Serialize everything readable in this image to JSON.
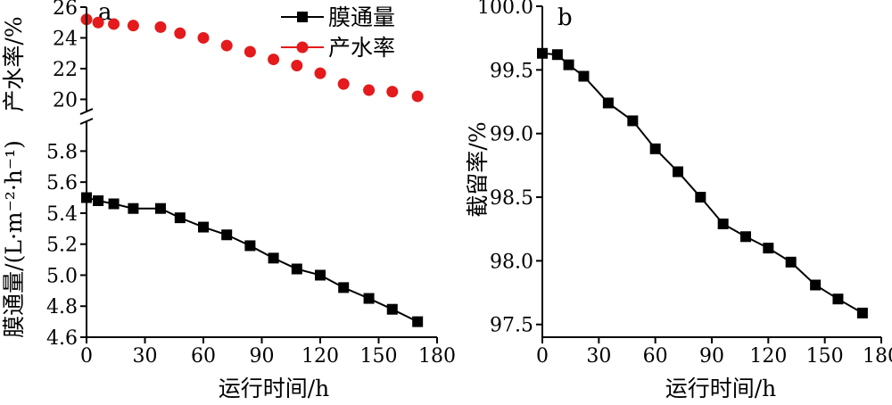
{
  "chart_data": [
    {
      "panel": "a",
      "type": "line",
      "xlabel": "运行时间/h",
      "ylabel_top": "产水率/%",
      "ylabel_bottom": "膜通量/(L·m⁻²·h⁻¹)",
      "xlim": [
        0,
        180
      ],
      "xticks": [
        "0",
        "30",
        "60",
        "90",
        "120",
        "150",
        "180"
      ],
      "ylim_top": [
        19.5,
        26
      ],
      "yticks_top": [
        "20",
        "22",
        "24",
        "26"
      ],
      "ylim_bottom": [
        4.6,
        5.9
      ],
      "yticks_bottom": [
        "4.6",
        "4.8",
        "5.0",
        "5.2",
        "5.4",
        "5.6",
        "5.8"
      ],
      "legend": [
        "膜通量",
        "产水率"
      ],
      "series": [
        {
          "name": "膜通量",
          "color": "#000000",
          "marker": "square",
          "line": true,
          "axis": "bottom",
          "x": [
            0,
            6,
            14,
            24,
            38,
            48,
            60,
            72,
            84,
            96,
            108,
            120,
            132,
            145,
            157,
            170
          ],
          "values": [
            5.5,
            5.48,
            5.46,
            5.43,
            5.43,
            5.37,
            5.31,
            5.26,
            5.19,
            5.11,
            5.04,
            5.0,
            4.92,
            4.85,
            4.78,
            4.7
          ]
        },
        {
          "name": "产水率",
          "color": "#e41a1c",
          "marker": "circle",
          "line": false,
          "axis": "top",
          "x": [
            0,
            6,
            14,
            24,
            38,
            48,
            60,
            72,
            84,
            96,
            108,
            120,
            132,
            145,
            157,
            170
          ],
          "values": [
            25.2,
            25.0,
            24.9,
            24.8,
            24.7,
            24.3,
            24.0,
            23.5,
            23.1,
            22.6,
            22.2,
            21.7,
            21.0,
            20.6,
            20.5,
            20.2
          ]
        }
      ]
    },
    {
      "panel": "b",
      "type": "line",
      "xlabel": "运行时间/h",
      "ylabel": "截留率/%",
      "xlim": [
        0,
        180
      ],
      "xticks": [
        "0",
        "30",
        "60",
        "90",
        "120",
        "150",
        "180"
      ],
      "ylim": [
        97.4,
        100.0
      ],
      "yticks": [
        "97.5",
        "98.0",
        "98.5",
        "99.0",
        "99.5",
        "100.0"
      ],
      "series": [
        {
          "color": "#000000",
          "marker": "square",
          "line": true,
          "x": [
            0,
            8,
            14,
            22,
            35,
            48,
            60,
            72,
            84,
            96,
            108,
            120,
            132,
            145,
            157,
            170
          ],
          "values": [
            99.63,
            99.62,
            99.54,
            99.45,
            99.24,
            99.1,
            98.88,
            98.7,
            98.5,
            98.29,
            98.19,
            98.1,
            97.99,
            97.81,
            97.7,
            97.59
          ]
        }
      ]
    }
  ]
}
